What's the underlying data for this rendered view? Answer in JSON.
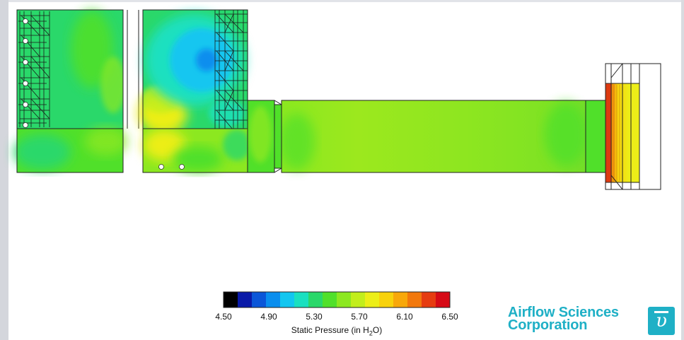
{
  "figure": {
    "colorbar": {
      "title_prefix": "Static Pressure (in H",
      "title_sub": "2",
      "title_suffix": "O)",
      "tick_labels": [
        "4.50",
        "4.90",
        "5.30",
        "5.70",
        "6.10",
        "6.50"
      ],
      "colors": [
        "#000000",
        "#0a1aa8",
        "#0b56d8",
        "#0a8eee",
        "#12c6f0",
        "#1ae0c0",
        "#2ad86a",
        "#50e02a",
        "#8ce820",
        "#c2ee1c",
        "#ecee18",
        "#f8d20c",
        "#f8a80a",
        "#f2780c",
        "#e63c10",
        "#d60a16"
      ]
    },
    "logo": {
      "line1": "Airflow Sciences",
      "line2": "Corporation",
      "mark": "υ"
    }
  },
  "chart_data": {
    "type": "heatmap",
    "variable": "Static Pressure (in H2O)",
    "range": [
      4.5,
      6.5
    ],
    "colorbar_ticks": [
      4.5,
      4.9,
      5.3,
      5.7,
      6.1,
      6.5
    ],
    "color_levels": 16
  }
}
